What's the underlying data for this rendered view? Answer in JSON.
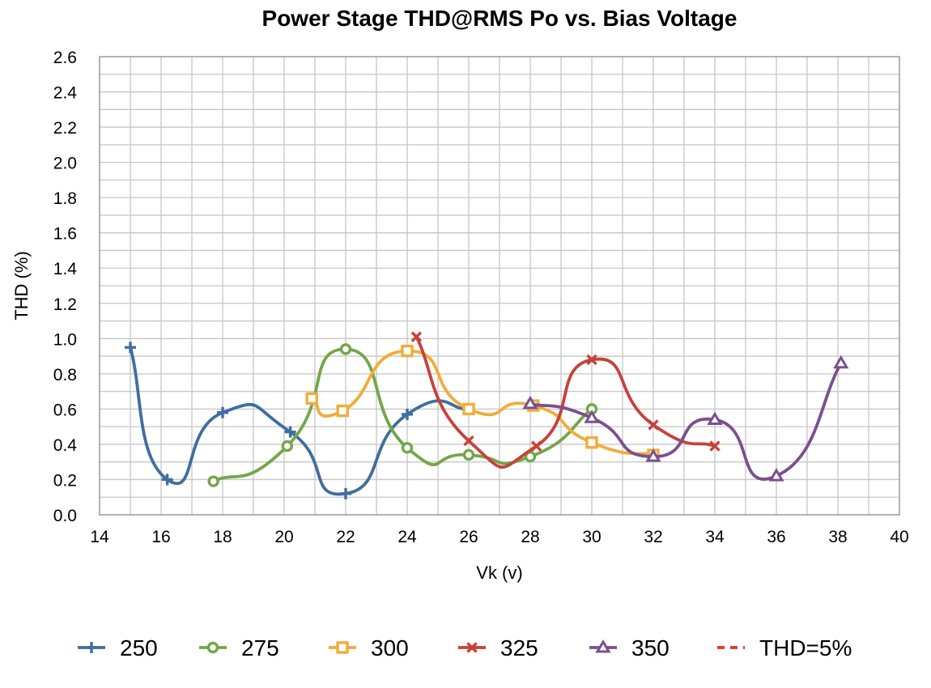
{
  "chart_data": {
    "type": "line",
    "title": "Power Stage THD@RMS Po vs. Bias Voltage",
    "xlabel": "Vk (v)",
    "ylabel": "THD (%)",
    "xlim": [
      14,
      40
    ],
    "ylim": [
      0,
      2.6
    ],
    "x_ticks": [
      "14",
      "16",
      "18",
      "20",
      "22",
      "24",
      "26",
      "28",
      "30",
      "32",
      "34",
      "36",
      "38",
      "40"
    ],
    "y_ticks": [
      "0.0",
      "0.2",
      "0.4",
      "0.6",
      "0.8",
      "1.0",
      "1.2",
      "1.4",
      "1.6",
      "1.8",
      "2.0",
      "2.2",
      "2.4",
      "2.6"
    ],
    "x_tick_values": [
      14,
      16,
      18,
      20,
      22,
      24,
      26,
      28,
      30,
      32,
      34,
      36,
      38,
      40
    ],
    "y_tick_values": [
      0,
      0.2,
      0.4,
      0.6,
      0.8,
      1.0,
      1.2,
      1.4,
      1.6,
      1.8,
      2.0,
      2.2,
      2.4,
      2.6
    ],
    "grid": true,
    "legend_position": "bottom",
    "smooth": true,
    "series": [
      {
        "name": "250",
        "color": "#3f6e9e",
        "marker": "plus",
        "points": [
          [
            15.0,
            0.95
          ],
          [
            16.2,
            0.2
          ],
          [
            18.0,
            0.58
          ],
          [
            20.2,
            0.47
          ],
          [
            22.0,
            0.12
          ],
          [
            24.0,
            0.57
          ],
          [
            26.0,
            0.6
          ]
        ]
      },
      {
        "name": "275",
        "color": "#74a64a",
        "marker": "circle",
        "points": [
          [
            17.7,
            0.19
          ],
          [
            20.1,
            0.39
          ],
          [
            22.0,
            0.94
          ],
          [
            24.0,
            0.38
          ],
          [
            26.0,
            0.34
          ],
          [
            28.0,
            0.33
          ],
          [
            30.0,
            0.6
          ]
        ]
      },
      {
        "name": "300",
        "color": "#f0ad3c",
        "marker": "square",
        "points": [
          [
            20.9,
            0.66
          ],
          [
            21.9,
            0.59
          ],
          [
            24.0,
            0.93
          ],
          [
            26.0,
            0.6
          ],
          [
            28.1,
            0.62
          ],
          [
            30.0,
            0.41
          ],
          [
            32.0,
            0.34
          ]
        ]
      },
      {
        "name": "325",
        "color": "#c8413a",
        "marker": "x",
        "points": [
          [
            24.3,
            1.01
          ],
          [
            26.0,
            0.42
          ],
          [
            28.2,
            0.39
          ],
          [
            30.0,
            0.88
          ],
          [
            32.0,
            0.51
          ],
          [
            34.0,
            0.39
          ]
        ]
      },
      {
        "name": "350",
        "color": "#7a4f8f",
        "marker": "triangle",
        "points": [
          [
            28.0,
            0.63
          ],
          [
            30.0,
            0.55
          ],
          [
            32.0,
            0.33
          ],
          [
            34.0,
            0.54
          ],
          [
            36.0,
            0.22
          ],
          [
            38.1,
            0.86
          ]
        ]
      },
      {
        "name": "THD=5%",
        "color": "#e8322a",
        "marker": "none",
        "dashed": true,
        "points": []
      }
    ]
  }
}
